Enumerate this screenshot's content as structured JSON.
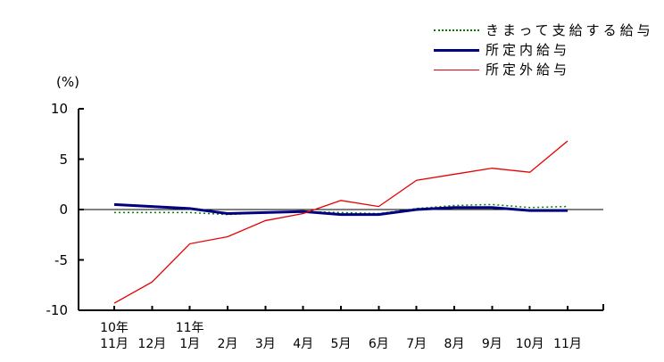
{
  "chart_data": {
    "type": "line",
    "title": "",
    "unit_label": "(%)",
    "xlabel": "",
    "ylabel": "(%)",
    "ylim": [
      -10,
      10
    ],
    "yticks": [
      10,
      5,
      0,
      -5,
      -10
    ],
    "zero_line": true,
    "grid": false,
    "legend_position": "top-right",
    "categories": [
      "11月",
      "12月",
      "1月",
      "2月",
      "3月",
      "4月",
      "5月",
      "6月",
      "7月",
      "8月",
      "9月",
      "10月",
      "11月"
    ],
    "year_markers": [
      {
        "label": "10年",
        "month_index": 0
      },
      {
        "label": "11年",
        "month_index": 2
      }
    ],
    "series": [
      {
        "name": "きまって支給する給与",
        "color": "#008000",
        "line_style": "dotted",
        "values": [
          -0.3,
          -0.3,
          -0.3,
          -0.5,
          -0.3,
          -0.2,
          -0.3,
          -0.4,
          0.1,
          0.4,
          0.5,
          0.2,
          0.3
        ]
      },
      {
        "name": "所定内給与",
        "color": "#000080",
        "line_style": "solid-thick",
        "values": [
          0.5,
          0.3,
          0.1,
          -0.4,
          -0.3,
          -0.2,
          -0.5,
          -0.5,
          0.0,
          0.2,
          0.2,
          -0.1,
          -0.1
        ]
      },
      {
        "name": "所定外給与",
        "color": "#e60000",
        "line_style": "solid-thin",
        "values": [
          -9.3,
          -7.2,
          -3.4,
          -2.7,
          -1.1,
          -0.4,
          0.9,
          0.3,
          2.9,
          3.5,
          4.1,
          3.7,
          6.8
        ]
      }
    ],
    "axis_color": "#000000"
  }
}
